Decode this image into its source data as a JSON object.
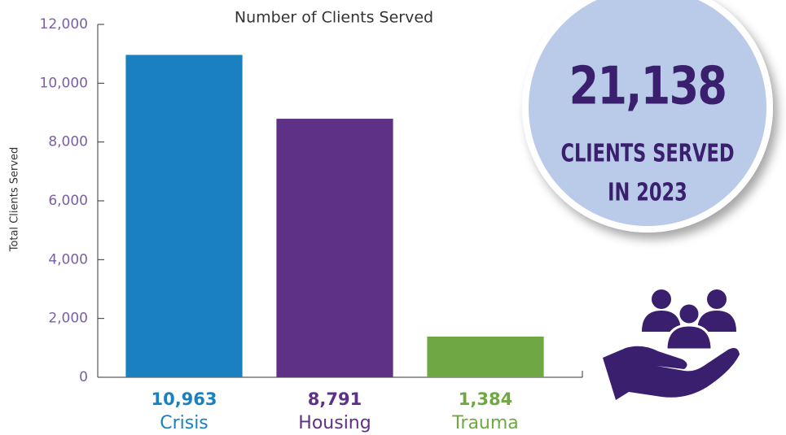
{
  "chart_data": {
    "type": "bar",
    "title": "Number of Clients Served",
    "y_label": "Total Clients Served",
    "categories": [
      "Crisis",
      "Housing",
      "Trauma"
    ],
    "values": [
      10963,
      8791,
      1384
    ],
    "value_labels": [
      "10,963",
      "8,791",
      "1,384"
    ],
    "colors": [
      "#1a80c0",
      "#5e3187",
      "#6fa843"
    ],
    "ylim": [
      0,
      12000
    ],
    "yticks": [
      0,
      {
        "value": 2000,
        "label": "2,000"
      },
      {
        "value": 4000,
        "label": "4,000"
      },
      {
        "value": 6000,
        "label": "6,000"
      },
      {
        "value": 8000,
        "label": "8,000"
      },
      {
        "value": 10000,
        "label": "10,000"
      },
      {
        "value": 12000,
        "label": "12,000"
      }
    ],
    "grid": false,
    "callout": {
      "number": "21,138",
      "lines": [
        "CLIENTS SERVED",
        "IN 2023"
      ]
    }
  }
}
